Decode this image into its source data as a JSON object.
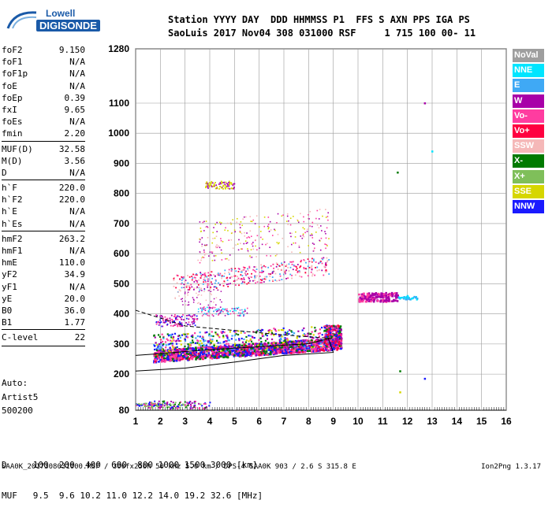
{
  "logo": {
    "line1": "Lowell",
    "line2": "DIGISONDE"
  },
  "header": {
    "line1": "Station YYYY DAY  DDD HHMMSS P1  FFS S AXN PPS IGA PS",
    "line2": "SaoLuis 2017 Nov04 308 031000 RSF     1 715 100 00- 11"
  },
  "params": [
    {
      "name": "foF2",
      "value": "9.150"
    },
    {
      "name": "foF1",
      "value": "N/A"
    },
    {
      "name": "foF1p",
      "value": "N/A"
    },
    {
      "name": "foE",
      "value": "N/A"
    },
    {
      "name": "foEp",
      "value": "0.39"
    },
    {
      "name": "fxI",
      "value": "9.65"
    },
    {
      "name": "foEs",
      "value": "N/A"
    },
    {
      "name": "fmin",
      "value": "2.20"
    },
    {
      "name": "MUF(D)",
      "value": "32.58"
    },
    {
      "name": "M(D)",
      "value": "3.56"
    },
    {
      "name": "D",
      "value": "N/A"
    },
    {
      "name": "h`F",
      "value": "220.0"
    },
    {
      "name": "h`F2",
      "value": "220.0"
    },
    {
      "name": "h`E",
      "value": "N/A"
    },
    {
      "name": "h`Es",
      "value": "N/A"
    },
    {
      "name": "hmF2",
      "value": "263.2"
    },
    {
      "name": "hmF1",
      "value": "N/A"
    },
    {
      "name": "hmE",
      "value": "110.0"
    },
    {
      "name": "yF2",
      "value": "34.9"
    },
    {
      "name": "yF1",
      "value": "N/A"
    },
    {
      "name": "yE",
      "value": "20.0"
    },
    {
      "name": "B0",
      "value": "36.0"
    },
    {
      "name": "B1",
      "value": "1.77"
    },
    {
      "name": "C-level",
      "value": "22"
    }
  ],
  "auto": {
    "line1": "Auto:",
    "line2": "Artist5",
    "line3": "500200"
  },
  "legend": [
    {
      "label": "NoVal",
      "color": "#9e9e9e"
    },
    {
      "label": "NNE",
      "color": "#00e5ff"
    },
    {
      "label": "E",
      "color": "#3fa9f5"
    },
    {
      "label": "W",
      "color": "#a800a8"
    },
    {
      "label": "Vo-",
      "color": "#ff3ca0"
    },
    {
      "label": "Vo+",
      "color": "#ff0040"
    },
    {
      "label": "SSW",
      "color": "#f5b8b8"
    },
    {
      "label": "X-",
      "color": "#007a00"
    },
    {
      "label": "X+",
      "color": "#7fbf5a"
    },
    {
      "label": "SSE",
      "color": "#d6d600"
    },
    {
      "label": "NNW",
      "color": "#1a1aff"
    }
  ],
  "muf_table": {
    "d_line": "D     100  200  400  600  800 1000 1500 3000 [km]",
    "muf_line": "MUF   9.5  9.6 10.2 11.0 12.2 14.0 19.2 32.6 [MHz]"
  },
  "footer": {
    "left": "SAA0K_2017308031000.RSF / 300fx256h 50 kHz 5.0 km / DPS-4 SAA0K 903 / 2.6 S 315.8 E",
    "right": "Ion2Png 1.3.17"
  },
  "chart_data": {
    "type": "scatter",
    "title": "",
    "xlabel": "",
    "ylabel": "",
    "x_ticks": [
      "1",
      "2",
      "3",
      "4",
      "5",
      "6",
      "7",
      "8",
      "9",
      "10",
      "11",
      "12",
      "13",
      "14",
      "15",
      "16"
    ],
    "y_ticks": [
      "80",
      "200",
      "300",
      "400",
      "500",
      "600",
      "700",
      "800",
      "900",
      "1000",
      "1100",
      "1280"
    ],
    "xlim": [
      1,
      16
    ],
    "ylim": [
      80,
      1280
    ],
    "grid": true,
    "legend_placement": "right",
    "series": [
      {
        "name": "Vo-",
        "color": "#ff3ca0",
        "points": [
          [
            2,
            270
          ],
          [
            3,
            268
          ],
          [
            4,
            275
          ],
          [
            5,
            282
          ],
          [
            6,
            290
          ],
          [
            7,
            295
          ],
          [
            8,
            300
          ],
          [
            9,
            310
          ],
          [
            2.5,
            500
          ],
          [
            4,
            520
          ],
          [
            6,
            540
          ],
          [
            8,
            560
          ]
        ]
      },
      {
        "name": "Vo+",
        "color": "#ff0040",
        "points": [
          [
            2,
            285
          ],
          [
            3,
            290
          ],
          [
            4,
            300
          ],
          [
            6,
            310
          ],
          [
            8,
            320
          ],
          [
            9,
            320
          ]
        ]
      },
      {
        "name": "NNW",
        "color": "#1a1aff",
        "points": [
          [
            1.8,
            262
          ],
          [
            2.4,
            262
          ],
          [
            3,
            265
          ],
          [
            4,
            270
          ],
          [
            5,
            278
          ],
          [
            6,
            285
          ],
          [
            7,
            290
          ],
          [
            8,
            295
          ],
          [
            9,
            310
          ],
          [
            2,
            380
          ],
          [
            12.7,
            185
          ]
        ]
      },
      {
        "name": "W",
        "color": "#a800a8",
        "points": [
          [
            2,
            300
          ],
          [
            3,
            480
          ],
          [
            4,
            750
          ],
          [
            5,
            800
          ],
          [
            6,
            600
          ],
          [
            7,
            650
          ],
          [
            8,
            600
          ],
          [
            10.5,
            460
          ],
          [
            11,
            455
          ],
          [
            12.7,
            1100
          ]
        ]
      },
      {
        "name": "NNE",
        "color": "#00e5ff",
        "points": [
          [
            4,
            410
          ],
          [
            11.9,
            455
          ],
          [
            12,
            460
          ],
          [
            13,
            940
          ]
        ]
      },
      {
        "name": "SSE",
        "color": "#d6d600",
        "points": [
          [
            4,
            840
          ],
          [
            4.5,
            830
          ],
          [
            10,
            490
          ],
          [
            11.7,
            140
          ]
        ]
      },
      {
        "name": "X-",
        "color": "#007a00",
        "points": [
          [
            10,
            330
          ],
          [
            11.6,
            870
          ],
          [
            11.7,
            210
          ]
        ]
      },
      {
        "name": "X+",
        "color": "#7fbf5a",
        "points": [
          [
            10.2,
            480
          ]
        ]
      }
    ]
  }
}
